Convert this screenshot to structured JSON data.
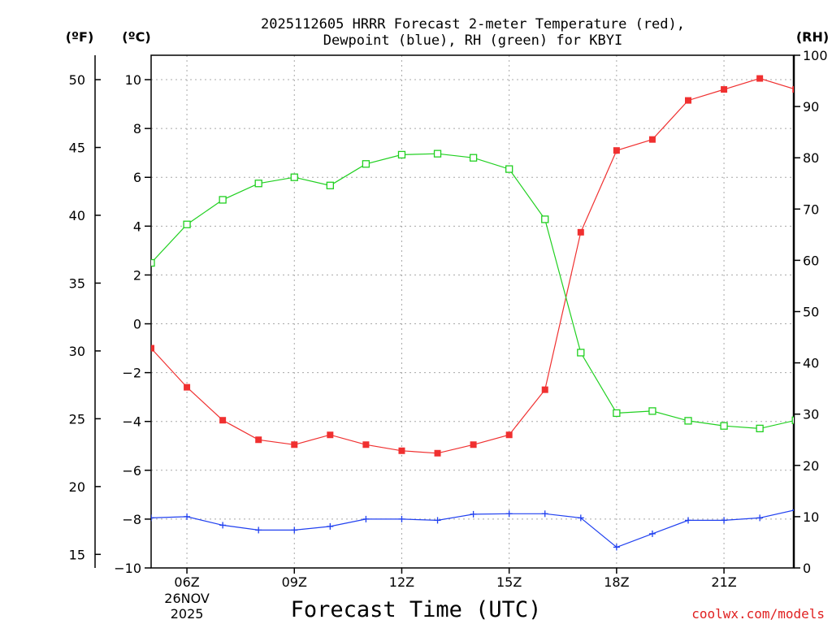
{
  "chart_data": {
    "type": "line",
    "title_line1": "2025112605 HRRR Forecast 2-meter Temperature (red),",
    "title_line2": "Dewpoint (blue), RH (green) for KBYI",
    "xlabel": "Forecast Time (UTC)",
    "x_hours": [
      5,
      6,
      7,
      8,
      9,
      10,
      11,
      12,
      13,
      14,
      15,
      16,
      17,
      18,
      19,
      20,
      21,
      22,
      23
    ],
    "x_ticks": [
      {
        "hour": 6,
        "label": "06Z",
        "sub1": "26NOV",
        "sub2": "2025"
      },
      {
        "hour": 9,
        "label": "09Z"
      },
      {
        "hour": 12,
        "label": "12Z"
      },
      {
        "hour": 15,
        "label": "15Z"
      },
      {
        "hour": 18,
        "label": "18Z"
      },
      {
        "hour": 21,
        "label": "21Z"
      }
    ],
    "xlim": [
      5,
      22.95
    ],
    "axes": {
      "celsius": {
        "unit_label": "(ºC)",
        "range": [
          -10,
          11
        ],
        "ticks": [
          "10",
          "8",
          "6",
          "4",
          "2",
          "0",
          "−2",
          "−4",
          "−6",
          "−8",
          "−10"
        ]
      },
      "fahrenheit": {
        "unit_label": "(ºF)",
        "ticks": [
          "50",
          "45",
          "40",
          "35",
          "30",
          "25",
          "20",
          "15"
        ]
      },
      "rh": {
        "unit_label": "(RH)",
        "range": [
          0,
          100
        ],
        "ticks": [
          "100",
          "90",
          "80",
          "70",
          "60",
          "50",
          "40",
          "30",
          "20",
          "10",
          "0"
        ]
      }
    },
    "series": [
      {
        "name": "Temperature",
        "color": "#f03030",
        "unit": "C",
        "marker": "filled-square",
        "values": [
          -1.0,
          -2.6,
          -3.95,
          -4.75,
          -4.95,
          -4.55,
          -4.95,
          -5.2,
          -5.3,
          -4.95,
          -4.55,
          -2.7,
          3.75,
          7.1,
          7.55,
          9.15,
          9.6,
          10.05,
          9.6
        ]
      },
      {
        "name": "Dewpoint",
        "color": "#2040f0",
        "unit": "C",
        "marker": "plus",
        "values": [
          -7.95,
          -7.9,
          -8.25,
          -8.45,
          -8.45,
          -8.3,
          -8.0,
          -8.0,
          -8.05,
          -7.8,
          -7.78,
          -7.78,
          -7.95,
          -9.15,
          -8.6,
          -8.05,
          -8.05,
          -7.95,
          -7.62
        ]
      },
      {
        "name": "RH",
        "color": "#20d020",
        "unit": "%",
        "marker": "open-square",
        "values": [
          59.5,
          67,
          71.8,
          75,
          76.2,
          74.6,
          78.8,
          80.6,
          80.8,
          80,
          77.8,
          68,
          42,
          30.2,
          30.6,
          28.7,
          27.7,
          27.2,
          28.8
        ]
      }
    ],
    "credit": "coolwx.com/models",
    "credit_color": "#e02020",
    "grid": true
  }
}
